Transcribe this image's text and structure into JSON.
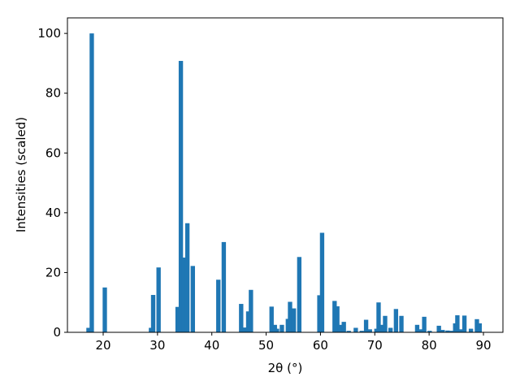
{
  "chart_data": {
    "type": "bar",
    "xlabel": "2θ (°)",
    "ylabel": "Intensities (scaled)",
    "color": "#1f77b4",
    "bar_width": 0.8,
    "x": [
      17.3,
      17.9,
      20.3,
      28.8,
      29.2,
      30.2,
      33.7,
      34.3,
      34.9,
      35.5,
      36.5,
      41.2,
      42.2,
      45.4,
      46.0,
      46.7,
      47.2,
      51.0,
      51.6,
      52.0,
      52.9,
      54.0,
      54.4,
      55.1,
      56.1,
      59.8,
      60.3,
      62.6,
      63.1,
      63.6,
      64.3,
      65.2,
      66.5,
      67.6,
      68.4,
      69.1,
      70.3,
      70.7,
      71.3,
      71.9,
      72.9,
      73.9,
      74.9,
      77.8,
      78.4,
      79.1,
      80.1,
      81.8,
      82.5,
      83.4,
      84.2,
      84.8,
      85.2,
      85.8,
      86.5,
      87.7,
      88.8,
      89.3
    ],
    "values": [
      1.5,
      100,
      15,
      1.5,
      12.5,
      21.7,
      8.5,
      90.8,
      25,
      36.5,
      22.2,
      17.6,
      30.2,
      9.5,
      1.6,
      7,
      14.2,
      8.6,
      2.5,
      1.2,
      2.5,
      4.5,
      10.2,
      8,
      25.2,
      12.4,
      33.3,
      10.5,
      8.7,
      2.5,
      3.5,
      0.5,
      1.5,
      0.5,
      4.2,
      1,
      1.2,
      10,
      2.5,
      5.5,
      1.5,
      7.8,
      5.5,
      2.5,
      1,
      5.2,
      0.5,
      2.2,
      0.8,
      0.6,
      0.5,
      3,
      5.7,
      1,
      5.6,
      1.2,
      4.4,
      3
    ],
    "xlim": [
      13.42,
      93.59
    ],
    "ylim": [
      0,
      105.2
    ],
    "xticks": [
      20,
      30,
      40,
      50,
      60,
      70,
      80,
      90
    ],
    "yticks": [
      0,
      20,
      40,
      60,
      80,
      100
    ]
  }
}
